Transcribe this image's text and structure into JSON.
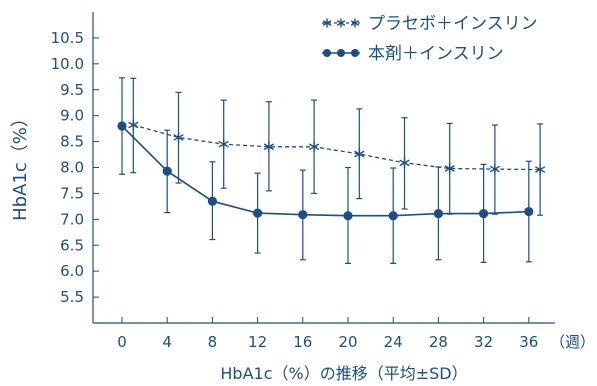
{
  "chart_data": {
    "type": "line",
    "title": "",
    "caption": "HbA1c（%）の推移（平均±SD）",
    "ylabel": "HbA1c（%）",
    "xunit": "（週）",
    "ylim": [
      5.0,
      11.0
    ],
    "yticks": [
      "5.5",
      "6.0",
      "6.5",
      "7.0",
      "7.5",
      "8.0",
      "8.5",
      "9.0",
      "9.5",
      "10.0",
      "10.5"
    ],
    "xticks": [
      "0",
      "4",
      "8",
      "12",
      "16",
      "20",
      "24",
      "28",
      "32",
      "36"
    ],
    "grid": false,
    "legend_position": "top-right",
    "series": [
      {
        "name": "プラセボ＋インスリン",
        "marker": "star",
        "line_style": "dashed",
        "color": "#1a4f8a",
        "x": [
          1,
          5,
          9,
          13,
          17,
          21,
          25,
          29,
          33,
          37
        ],
        "y": [
          8.82,
          8.58,
          8.45,
          8.4,
          8.4,
          8.26,
          8.09,
          7.98,
          7.97,
          7.96
        ],
        "sd_upper": [
          9.72,
          9.45,
          9.3,
          9.27,
          9.3,
          9.13,
          8.96,
          8.85,
          8.82,
          8.84
        ],
        "sd_lower": [
          7.9,
          7.7,
          7.6,
          7.55,
          7.5,
          7.4,
          7.2,
          7.1,
          7.1,
          7.08
        ]
      },
      {
        "name": "本剤＋インスリン",
        "marker": "circle",
        "line_style": "solid",
        "color": "#1a4f8a",
        "x": [
          0,
          4,
          8,
          12,
          16,
          20,
          24,
          28,
          32,
          36
        ],
        "y": [
          8.8,
          7.93,
          7.35,
          7.12,
          7.09,
          7.07,
          7.07,
          7.11,
          7.11,
          7.15
        ],
        "sd_upper": [
          9.73,
          8.72,
          8.11,
          7.89,
          7.95,
          8.0,
          7.99,
          8.01,
          8.06,
          8.12
        ],
        "sd_lower": [
          7.87,
          7.13,
          6.61,
          6.35,
          6.22,
          6.15,
          6.15,
          6.22,
          6.17,
          6.18
        ]
      }
    ]
  }
}
